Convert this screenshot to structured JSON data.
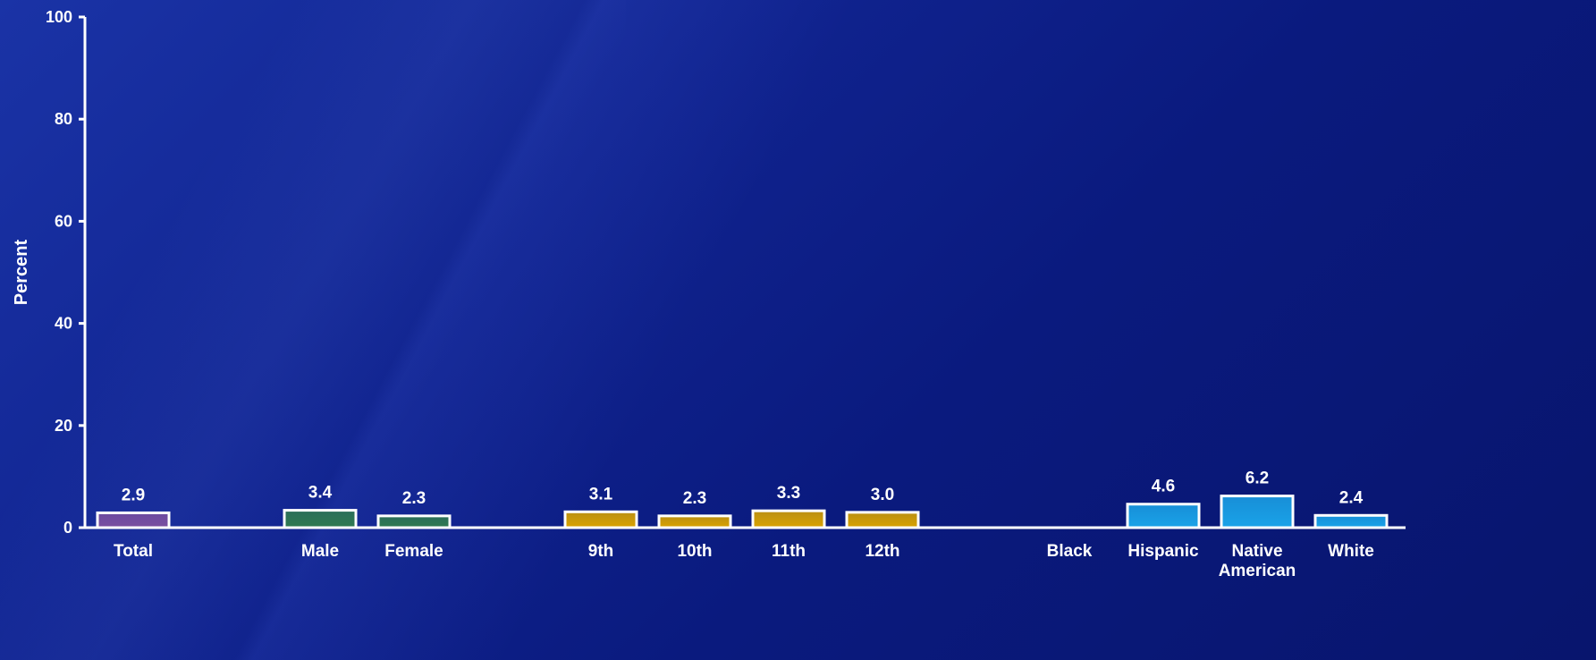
{
  "chart_data": {
    "type": "bar",
    "title": "",
    "xlabel": "",
    "ylabel": "Percent",
    "ylim": [
      0,
      100
    ],
    "yticks": [
      0,
      20,
      40,
      60,
      80,
      100
    ],
    "grid": false,
    "legend": "none",
    "categories": [
      {
        "label": [
          "Total"
        ],
        "value": 2.9,
        "value_text": "2.9",
        "color": "#7a4fa0"
      },
      {
        "label": [
          "Male"
        ],
        "value": 3.4,
        "value_text": "3.4",
        "color": "#2f7a50"
      },
      {
        "label": [
          "Female"
        ],
        "value": 2.3,
        "value_text": "2.3",
        "color": "#2f7a50"
      },
      {
        "label": [
          "9th"
        ],
        "value": 3.1,
        "value_text": "3.1",
        "color": "#d9a300"
      },
      {
        "label": [
          "10th"
        ],
        "value": 2.3,
        "value_text": "2.3",
        "color": "#d9a300"
      },
      {
        "label": [
          "11th"
        ],
        "value": 3.3,
        "value_text": "3.3",
        "color": "#d9a300"
      },
      {
        "label": [
          "12th"
        ],
        "value": 3.0,
        "value_text": "3.0",
        "color": "#d9a300"
      },
      {
        "label": [
          "Black"
        ],
        "value": null,
        "value_text": "",
        "color": "#1aa3e8"
      },
      {
        "label": [
          "Hispanic"
        ],
        "value": 4.6,
        "value_text": "4.6",
        "color": "#1aa3e8"
      },
      {
        "label": [
          "Native",
          "American"
        ],
        "value": 6.2,
        "value_text": "6.2",
        "color": "#1aa3e8"
      },
      {
        "label": [
          "White"
        ],
        "value": 2.4,
        "value_text": "2.4",
        "color": "#1aa3e8"
      }
    ],
    "colors": {
      "axis": "#ffffff",
      "bar_border": "#ffffff",
      "background": "#0a1a7e"
    }
  }
}
